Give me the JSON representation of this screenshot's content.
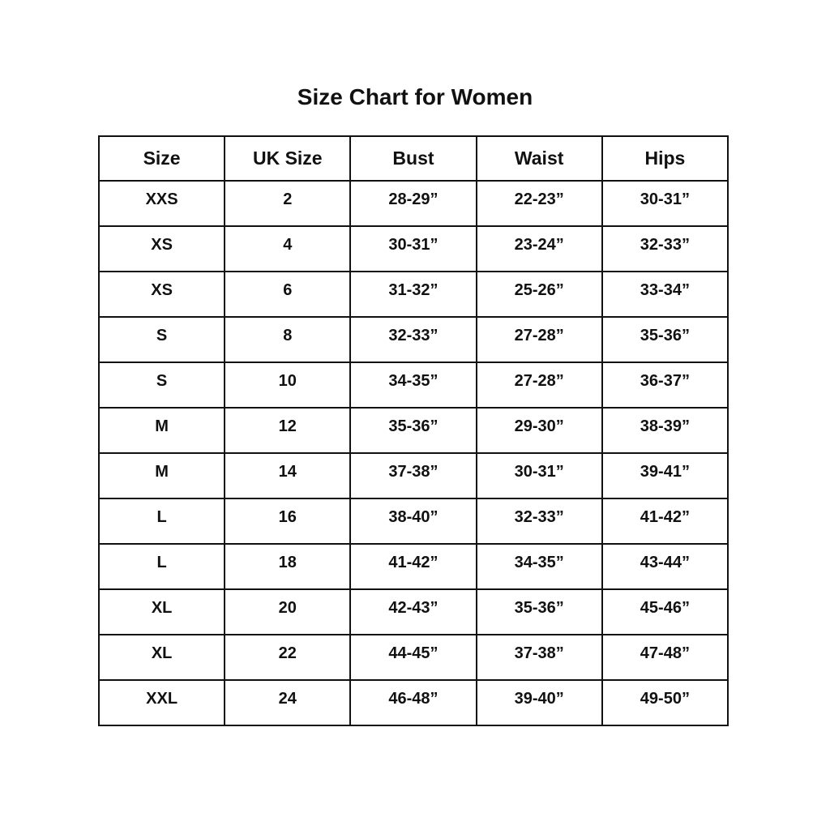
{
  "page": {
    "title": "Size Chart for Women"
  },
  "chart_data": {
    "type": "table",
    "title": "Size Chart for Women",
    "columns": [
      "Size",
      "UK Size",
      "Bust",
      "Waist",
      "Hips"
    ],
    "rows": [
      [
        "XXS",
        "2",
        "28-29”",
        "22-23”",
        "30-31”"
      ],
      [
        "XS",
        "4",
        "30-31”",
        "23-24”",
        "32-33”"
      ],
      [
        "XS",
        "6",
        "31-32”",
        "25-26”",
        "33-34”"
      ],
      [
        "S",
        "8",
        "32-33”",
        "27-28”",
        "35-36”"
      ],
      [
        "S",
        "10",
        "34-35”",
        "27-28”",
        "36-37”"
      ],
      [
        "M",
        "12",
        "35-36”",
        "29-30”",
        "38-39”"
      ],
      [
        "M",
        "14",
        "37-38”",
        "30-31”",
        "39-41”"
      ],
      [
        "L",
        "16",
        "38-40”",
        "32-33”",
        "41-42”"
      ],
      [
        "L",
        "18",
        "41-42”",
        "34-35”",
        "43-44”"
      ],
      [
        "XL",
        "20",
        "42-43”",
        "35-36”",
        "45-46”"
      ],
      [
        "XL",
        "22",
        "44-45”",
        "37-38”",
        "47-48”"
      ],
      [
        "XXL",
        "24",
        "46-48”",
        "39-40”",
        "49-50”"
      ]
    ],
    "layout": {
      "text_color": "#111111",
      "border_color": "#111111",
      "background_color": "#ffffff",
      "header_bold": true,
      "cells_bold": true
    }
  }
}
